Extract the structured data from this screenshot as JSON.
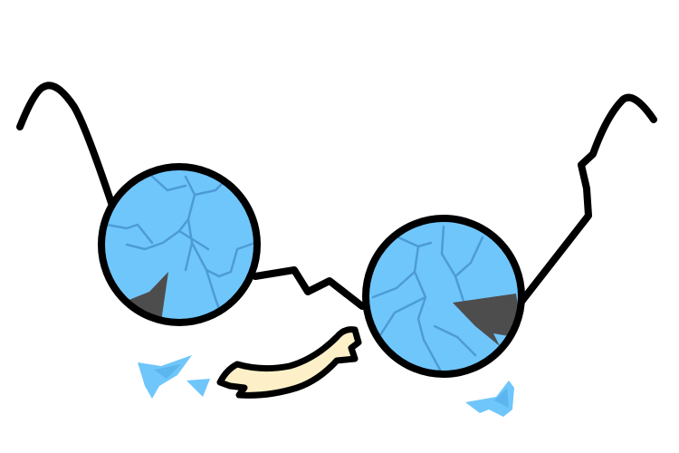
{
  "colors": {
    "lens": "#6fc6fb",
    "lens_crack": "#4a97d3",
    "lens_hole": "#4d4d4d",
    "outline": "#000000",
    "shard": "#6fc6fb",
    "shard_shade": "#5bb5ee",
    "bridge_piece": "#fdf0c9",
    "background": "#ffffff"
  },
  "illustration": {
    "subject": "broken-round-eyeglasses",
    "icon": "broken-glasses-icon"
  }
}
